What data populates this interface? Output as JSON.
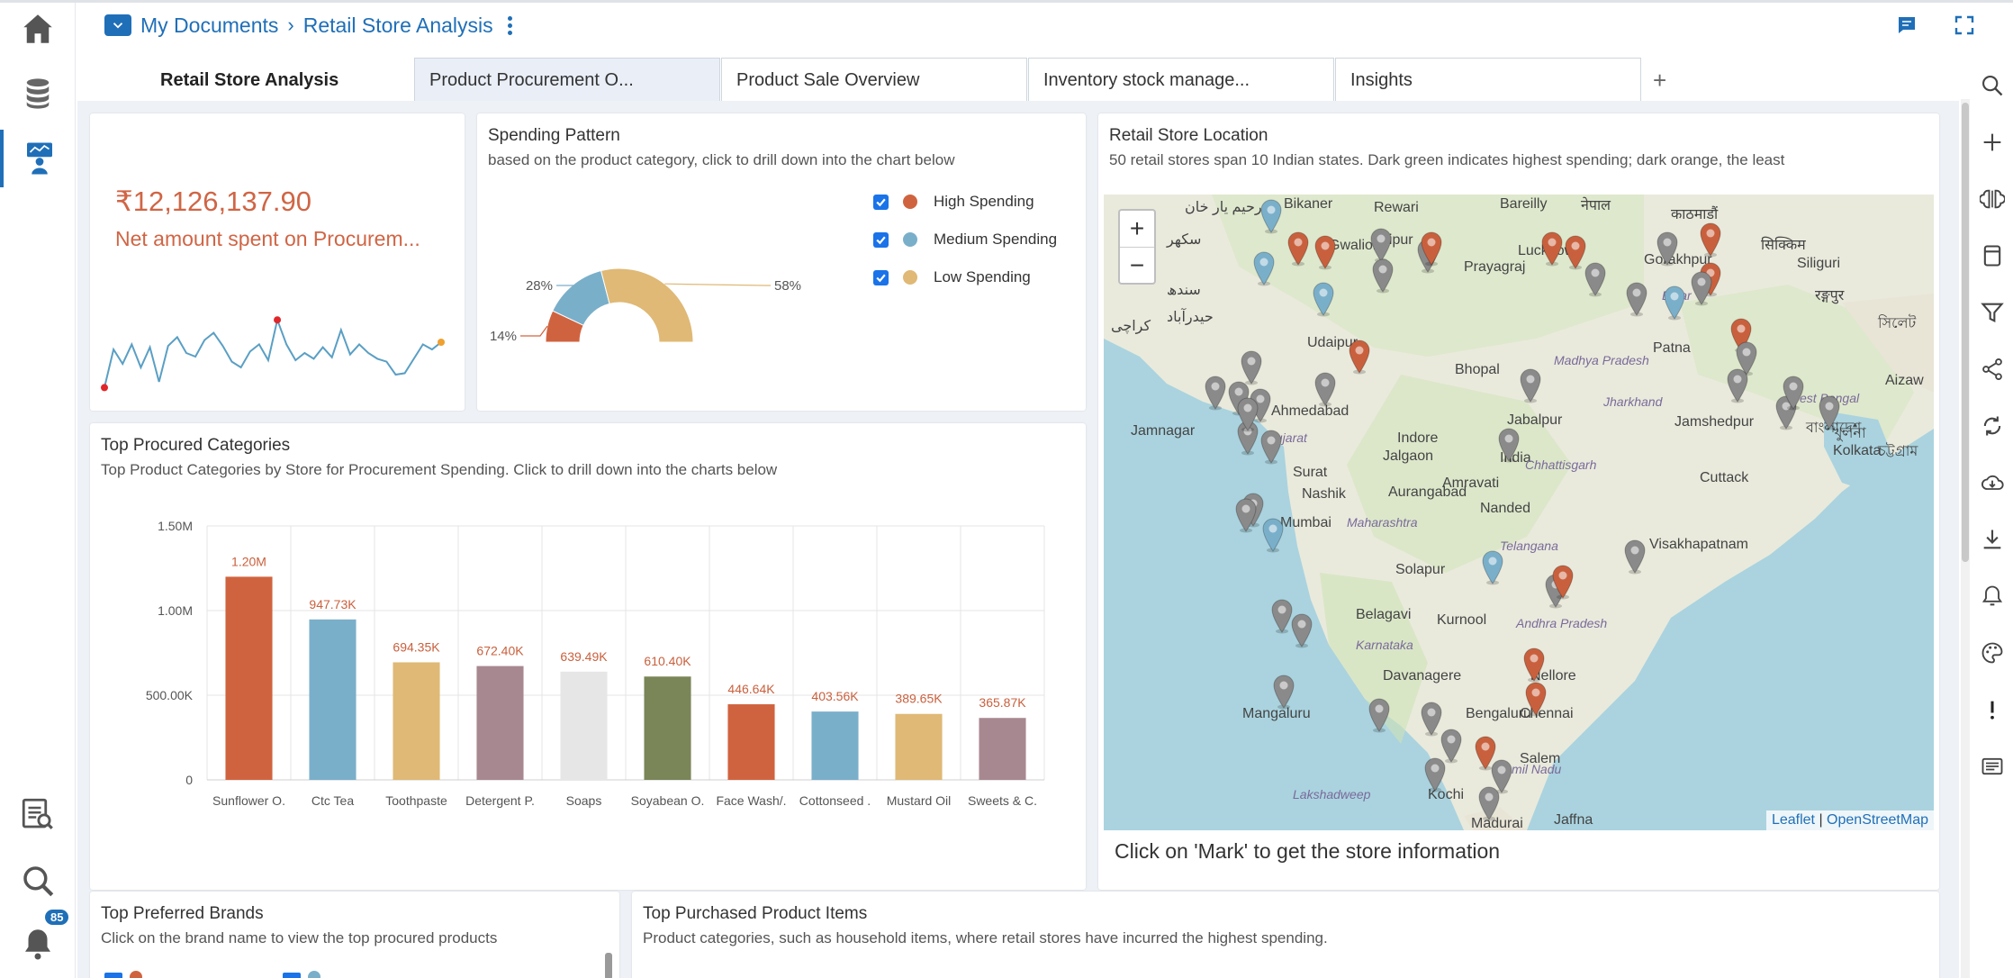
{
  "breadcrumb": {
    "root": "My Documents",
    "separator": ">",
    "current": "Retail Store Analysis"
  },
  "notifications": {
    "count": "85"
  },
  "tabs": {
    "title": "Retail Store Analysis",
    "items": [
      {
        "label": "Product Procurement O...",
        "active": true
      },
      {
        "label": "Product Sale Overview",
        "active": false
      },
      {
        "label": "Inventory stock manage...",
        "active": false
      },
      {
        "label": "Insights",
        "active": false
      }
    ],
    "add": "+"
  },
  "kpi": {
    "value": "₹12,126,137.90",
    "label": "Net amount spent on Procurem...",
    "sparkline": [
      0.02,
      0.55,
      0.35,
      0.62,
      0.3,
      0.58,
      0.1,
      0.6,
      0.72,
      0.5,
      0.45,
      0.68,
      0.78,
      0.6,
      0.38,
      0.3,
      0.52,
      0.62,
      0.4,
      0.96,
      0.62,
      0.4,
      0.5,
      0.42,
      0.58,
      0.44,
      0.82,
      0.48,
      0.62,
      0.5,
      0.42,
      0.38,
      0.2,
      0.22,
      0.42,
      0.62,
      0.55,
      0.65
    ]
  },
  "spending": {
    "title": "Spending Pattern",
    "subtitle": "based on the product category, click to drill down into the chart below",
    "legend": [
      {
        "label": "High Spending",
        "color": "#d0633f",
        "checked": true
      },
      {
        "label": "Medium Spending",
        "color": "#7aafca",
        "checked": true
      },
      {
        "label": "Low Spending",
        "color": "#dfb975",
        "checked": true
      }
    ]
  },
  "map": {
    "title": "Retail Store Location",
    "subtitle": "50 retail stores span 10 Indian states. Dark green indicates highest spending; dark orange, the least",
    "zoom_in": "+",
    "zoom_out": "−",
    "attribution_leaflet": "Leaflet",
    "attribution_sep": "|",
    "attribution_osm": "OpenStreetMap",
    "info": "Click on 'Mark' to get the store information",
    "labels": [
      "Bikaner",
      "Rewari",
      "Bareilly",
      "नेपाल",
      "काठमाडौं",
      "رحیم یار خان",
      "Jaipur",
      "सिक्किम",
      "سکھر",
      "Gwalior",
      "Lucknow",
      "Prayagraj",
      "Gorakhpur",
      "Siliguri",
      "سندھ",
      "حیدرآباد",
      "Bihar",
      "रङ्गपुर",
      "সিলেট",
      "کراچی",
      "Udaipur",
      "Patna",
      "Madhya Pradesh",
      "Bhopal",
      "Jharkhand",
      "West Bengal",
      "Aizaw",
      "বাংলাদেশ",
      "Ahmedabad",
      "Jamnagar",
      "Gujarat",
      "Indore",
      "Jabalpur",
      "Jamshedpur",
      "খুলনা",
      "Kolkata",
      "চট্টগ্রাম",
      "Surat",
      "Jalgaon",
      "India",
      "Amravati",
      "Chhattisgarh",
      "Cuttack",
      "Nashik",
      "Aurangabad",
      "Nanded",
      "Mumbai",
      "Maharashtra",
      "Visakhapatnam",
      "Solapur",
      "Telangana",
      "Belagavi",
      "Kurnool",
      "Karnataka",
      "Andhra Pradesh",
      "Davanagere",
      "Nellore",
      "Mangaluru",
      "Bengaluru",
      "Chennai",
      "Salem",
      "Lakshadweep",
      "Kochi",
      "Tamil Nadu",
      "Madurai",
      "Jaffna"
    ]
  },
  "brands": {
    "title": "Top Preferred Brands",
    "subtitle": "Click on the brand name to view the top procured products"
  },
  "items": {
    "title": "Top Purchased Product Items",
    "subtitle": "Product categories, such as household items, where retail stores have incurred the highest spending."
  },
  "categories": {
    "title": "Top Procured Categories",
    "subtitle": "Top Product Categories by Store for Procurement Spending. Click to drill down into the charts below"
  },
  "chart_data": [
    {
      "type": "pie",
      "variant": "half-donut",
      "title": "Spending Pattern",
      "categories": [
        "High Spending",
        "Medium Spending",
        "Low Spending"
      ],
      "values": [
        14,
        28,
        58
      ],
      "data_labels": [
        "14%",
        "28%",
        "58%"
      ],
      "colors": [
        "#d0633f",
        "#7aafca",
        "#dfb975"
      ]
    },
    {
      "type": "bar",
      "title": "Top Procured Categories",
      "categories": [
        "Sunflower O.",
        "Ctc Tea",
        "Toothpaste",
        "Detergent P.",
        "Soaps",
        "Soyabean O.",
        "Face Wash/.",
        "Cottonseed .",
        "Mustard Oil",
        "Sweets & C."
      ],
      "values": [
        1200000,
        947730,
        694350,
        672400,
        639490,
        610400,
        446640,
        403560,
        389650,
        365870
      ],
      "data_labels": [
        "1.20M",
        "947.73K",
        "694.35K",
        "672.40K",
        "639.49K",
        "610.40K",
        "446.64K",
        "403.56K",
        "389.65K",
        "365.87K"
      ],
      "colors": [
        "#d0633f",
        "#7aafca",
        "#dfb975",
        "#a88890",
        "#e6e6e6",
        "#7a8558",
        "#d0633f",
        "#7aafca",
        "#dfb975",
        "#a88890"
      ],
      "yticks": [
        "0",
        "500.00K",
        "1.00M",
        "1.50M"
      ],
      "ylim": [
        0,
        1500000
      ],
      "grid": true
    }
  ]
}
